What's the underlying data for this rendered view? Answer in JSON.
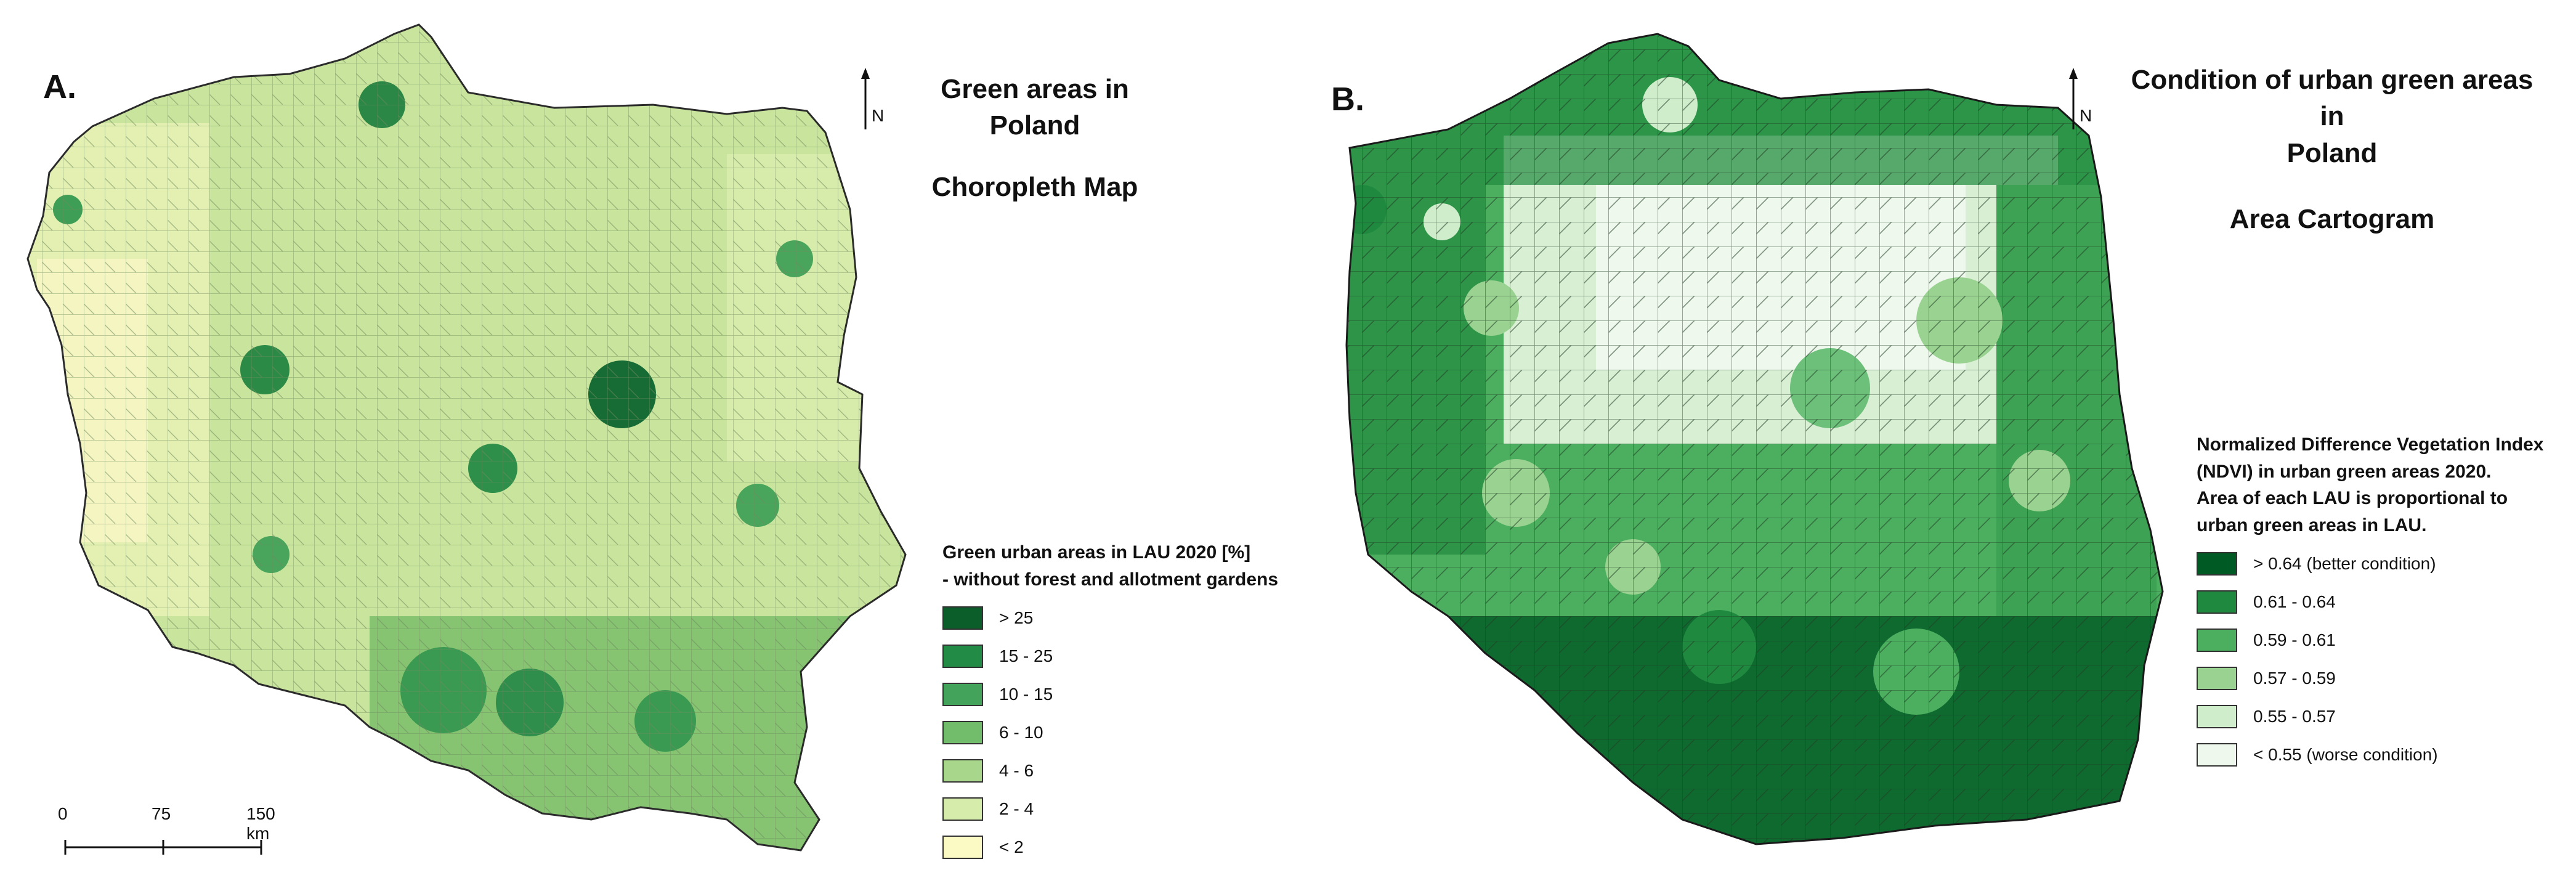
{
  "panel_a": {
    "letter": "A.",
    "title_line1": "Green areas in Poland",
    "title_line2": "Choropleth Map",
    "north": "N",
    "legend": {
      "title_line1": "Green urban areas in LAU 2020 [%]",
      "title_line2": "- without forest and allotment gardens",
      "classes": [
        {
          "label": "> 25",
          "color": "#0b5e2a"
        },
        {
          "label": "15 - 25",
          "color": "#228b45"
        },
        {
          "label": "10 - 15",
          "color": "#43a35a"
        },
        {
          "label": "6 - 10",
          "color": "#72bd6c"
        },
        {
          "label": "4 - 6",
          "color": "#a8d68a"
        },
        {
          "label": "2 - 4",
          "color": "#d6ecaa"
        },
        {
          "label": "< 2",
          "color": "#fbf9c4"
        }
      ]
    },
    "scalebar": {
      "labels": [
        "0",
        "75",
        "150 km"
      ]
    }
  },
  "panel_b": {
    "letter": "B.",
    "title_line1": "Condition of urban green areas in",
    "title_line2": "Poland",
    "title_line3": "Area Cartogram",
    "north": "N",
    "legend": {
      "title_lines": [
        "Normalized Difference Vegetation Index",
        "(NDVI) in urban green areas 2020.",
        "Area of each LAU is proportional to",
        "urban green areas in LAU."
      ],
      "classes": [
        {
          "label": "> 0.64 (better condition)",
          "color": "#005a24"
        },
        {
          "label": "0.61 - 0.64",
          "color": "#1f8a3f"
        },
        {
          "label": "0.59 - 0.61",
          "color": "#4caf5f"
        },
        {
          "label": "0.57 - 0.59",
          "color": "#9ad391"
        },
        {
          "label": "0.55 - 0.57",
          "color": "#cfeccb"
        },
        {
          "label": "< 0.55 (worse condition)",
          "color": "#eef8ec"
        }
      ]
    }
  }
}
